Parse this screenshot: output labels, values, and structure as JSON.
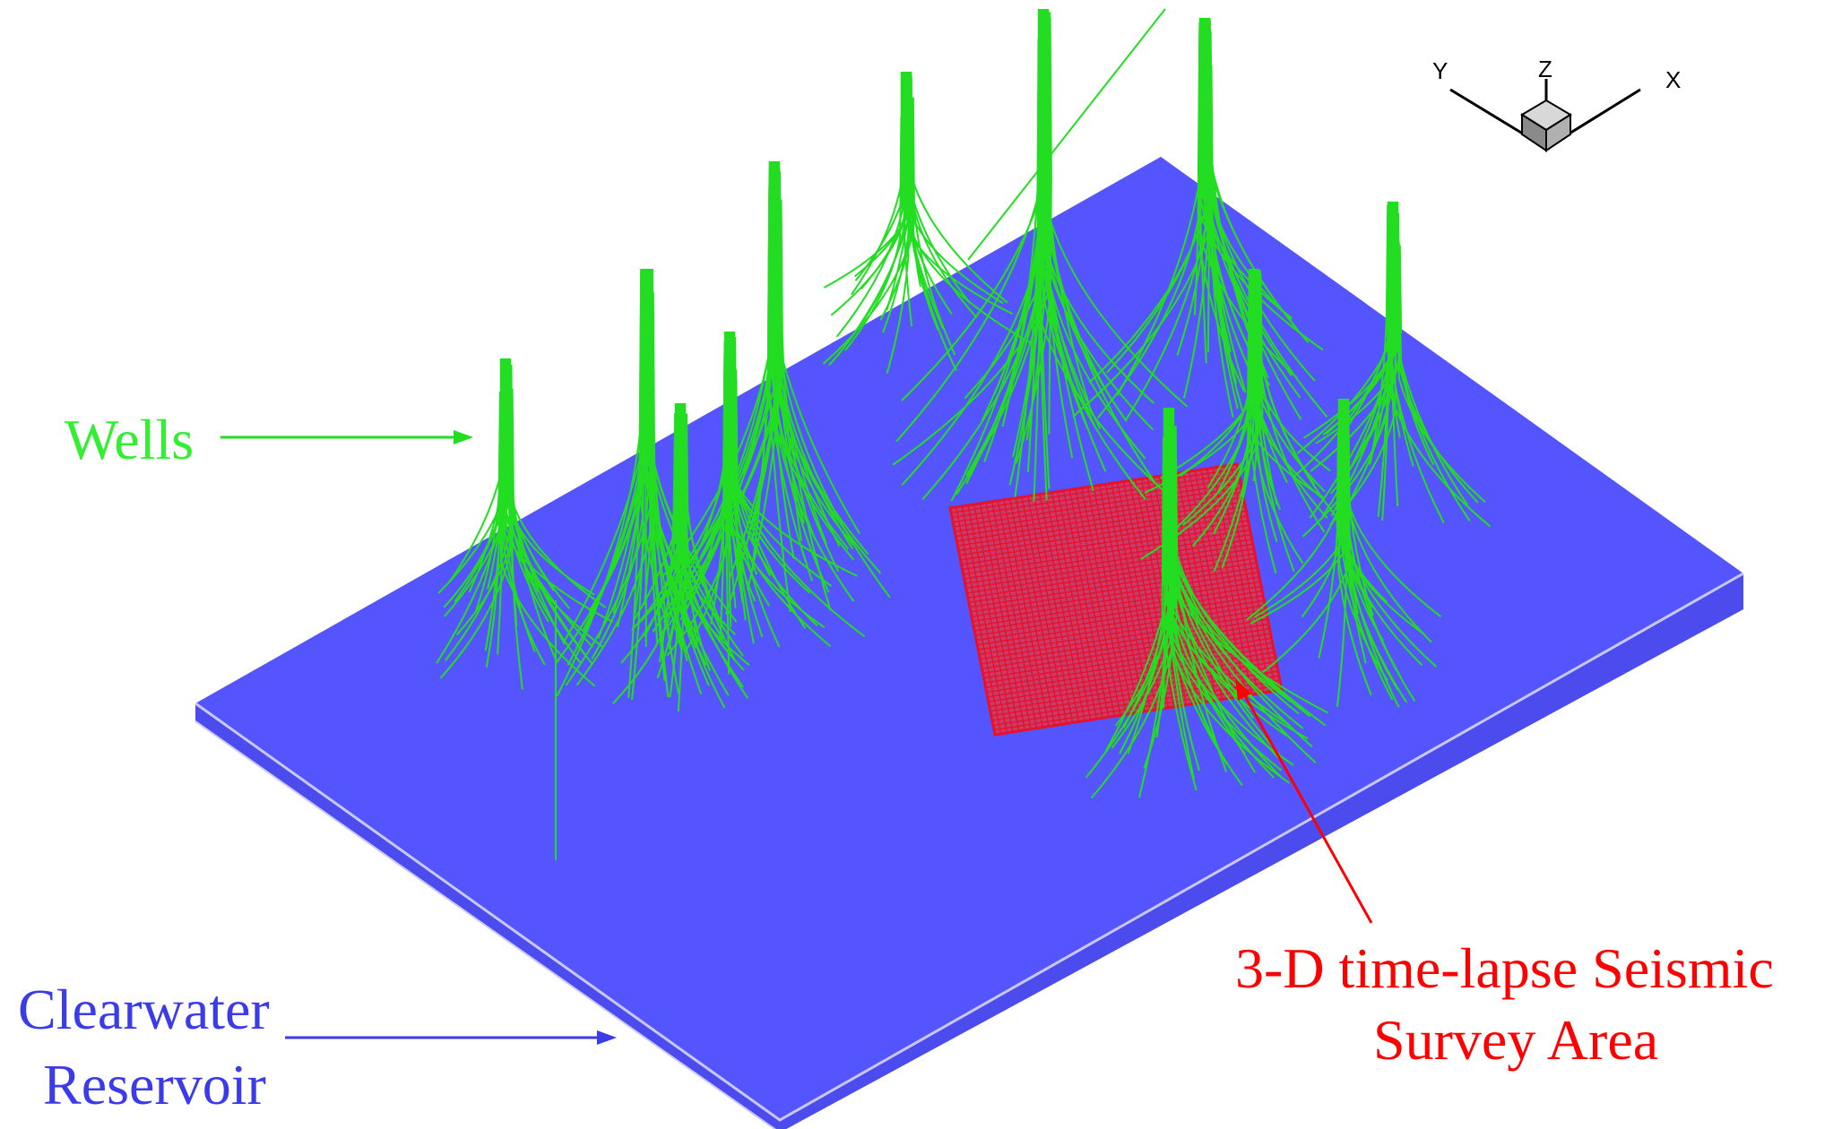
{
  "labels": {
    "wells": "Wells",
    "reservoir_line1": "Clearwater",
    "reservoir_line2": "Reservoir",
    "seismic_line1": "3-D time-lapse Seismic",
    "seismic_line2": "Survey Area"
  },
  "axes_triad": {
    "x": "X",
    "y": "Y",
    "z": "Z"
  },
  "colors": {
    "wells": "#22dd22",
    "reservoir": "#5555ff",
    "reservoir_side": "#4b4bee",
    "seismic": "#e8102a",
    "seismic_fill": "#c83c6a",
    "label_blue": "#3b3bea",
    "label_red": "#ff0000",
    "label_green": "#33ee33"
  },
  "icons": {
    "axes": "axes-triad-icon"
  }
}
